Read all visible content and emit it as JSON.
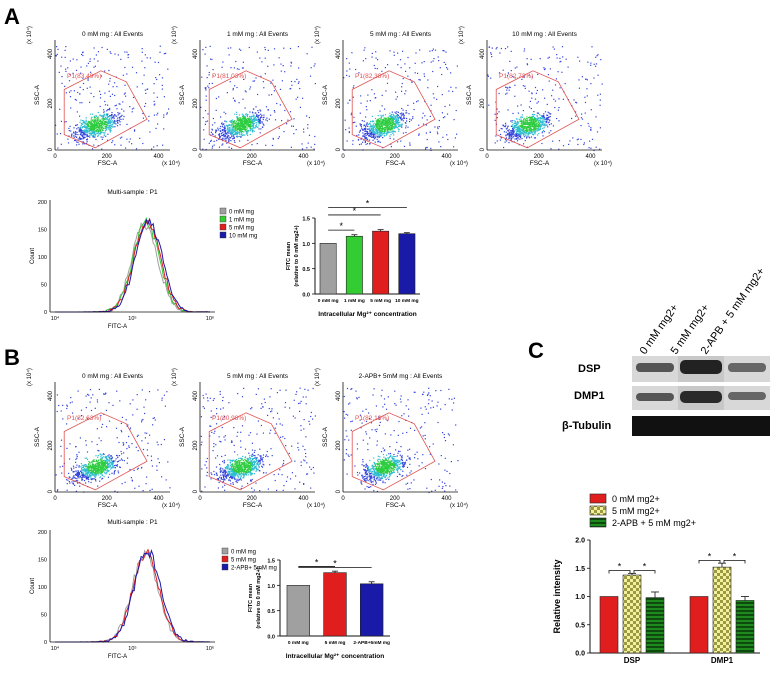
{
  "panels": {
    "A": "A",
    "B": "B",
    "C": "C"
  },
  "scatter_common": {
    "ylabel": "SSC-A",
    "xlabel": "FSC-A",
    "xunit": "(x 10⁴)",
    "yunit": "(x 10⁴)",
    "ticks": [
      "0",
      "200",
      "400"
    ]
  },
  "colors": {
    "gate": "#e05050",
    "gray": "#a0a0a0",
    "green": "#33cc33",
    "red": "#e01e1e",
    "blue": "#1a1aa8",
    "axis": "#111111"
  },
  "chart_data": [
    {
      "type": "scatter",
      "id": "A1",
      "title": "0 mM mg : All Events",
      "gate_label": "P1(83.49%)"
    },
    {
      "type": "scatter",
      "id": "A2",
      "title": "1 mM mg : All Events",
      "gate_label": "P1(81.03%)"
    },
    {
      "type": "scatter",
      "id": "A3",
      "title": "5 mM mg : All Events",
      "gate_label": "P1(82.38%)"
    },
    {
      "type": "scatter",
      "id": "A4",
      "title": "10 mM mg : All Events",
      "gate_label": "P1(82.72%)"
    },
    {
      "type": "line",
      "id": "A_hist",
      "title": "Multi-sample : P1",
      "xlabel": "FITC-A",
      "ylabel": "Count",
      "yticks": [
        "0",
        "50",
        "100",
        "150",
        "200"
      ],
      "xticks": [
        "10⁴",
        "10⁵",
        "10⁶"
      ],
      "legend": [
        "0 mM mg",
        "1 mM mg",
        "5 mM mg",
        "10 mM mg"
      ]
    },
    {
      "type": "bar",
      "id": "A_bar",
      "categories": [
        "0 mM mg",
        "1 mM mg",
        "5 mM mg",
        "10 mM mg"
      ],
      "values": [
        1.0,
        1.14,
        1.24,
        1.19
      ],
      "errors": [
        0.0,
        0.03,
        0.03,
        0.02
      ],
      "ylabel": "FITC mean (relative to 0 mM mg2+)",
      "xlabel": "Intracellular Mg²⁺ concentration",
      "yticks": [
        "0.0",
        "0.5",
        "1.0",
        "1.5"
      ],
      "ylim": [
        0,
        1.5
      ],
      "sig": [
        "*",
        "*",
        "*"
      ]
    },
    {
      "type": "scatter",
      "id": "B1",
      "title": "0 mM mg : All Events",
      "gate_label": "P1(82.63%)"
    },
    {
      "type": "scatter",
      "id": "B2",
      "title": "5 mM mg : All Events",
      "gate_label": "P1(80.98%)"
    },
    {
      "type": "scatter",
      "id": "B3",
      "title": "2-APB+ 5mM mg : All Events",
      "gate_label": "P1(82.13%)"
    },
    {
      "type": "line",
      "id": "B_hist",
      "title": "Multi-sample : P1",
      "xlabel": "FITC-A",
      "ylabel": "Count",
      "yticks": [
        "0",
        "50",
        "100",
        "150",
        "200"
      ],
      "xticks": [
        "10⁴",
        "10⁵",
        "10⁶"
      ],
      "legend": [
        "0 mM mg",
        "5 mM mg",
        "2-APB+ 5mM mg"
      ]
    },
    {
      "type": "bar",
      "id": "B_bar",
      "categories": [
        "0 mM mg",
        "5 mM mg",
        "2-APB+5mM mg"
      ],
      "values": [
        1.0,
        1.25,
        1.03
      ],
      "errors": [
        0.0,
        0.03,
        0.04
      ],
      "ylabel": "FITC mean (relative to 0 mM mg2+)",
      "xlabel": "Intracellular Mg²⁺ concentration",
      "yticks": [
        "0.0",
        "0.5",
        "1.0",
        "1.5"
      ],
      "ylim": [
        0,
        1.5
      ],
      "sig": [
        "*",
        "*"
      ]
    },
    {
      "type": "bar",
      "id": "C_bar",
      "categories": [
        "DSP",
        "DMP1"
      ],
      "series": [
        {
          "name": "0 mM mg2+",
          "values": [
            1.0,
            1.0
          ],
          "errors": [
            0,
            0
          ]
        },
        {
          "name": "5 mM mg2+",
          "values": [
            1.38,
            1.52
          ],
          "errors": [
            0.03,
            0.07
          ]
        },
        {
          "name": "2-APB + 5 mM mg2+",
          "values": [
            0.98,
            0.93
          ],
          "errors": [
            0.1,
            0.07
          ]
        }
      ],
      "ylabel": "Relative intensity",
      "yticks": [
        "0.0",
        "0.5",
        "1.0",
        "1.5",
        "2.0"
      ],
      "ylim": [
        0,
        2.0
      ],
      "sig": [
        "*",
        "*",
        "*",
        "*"
      ]
    }
  ],
  "blot": {
    "lanes": [
      "0 mM mg2+",
      "5 mM mg2+",
      "2-APB + 5 mM mg2+"
    ],
    "rows": [
      "DSP",
      "DMP1",
      "β-Tubulin"
    ]
  }
}
